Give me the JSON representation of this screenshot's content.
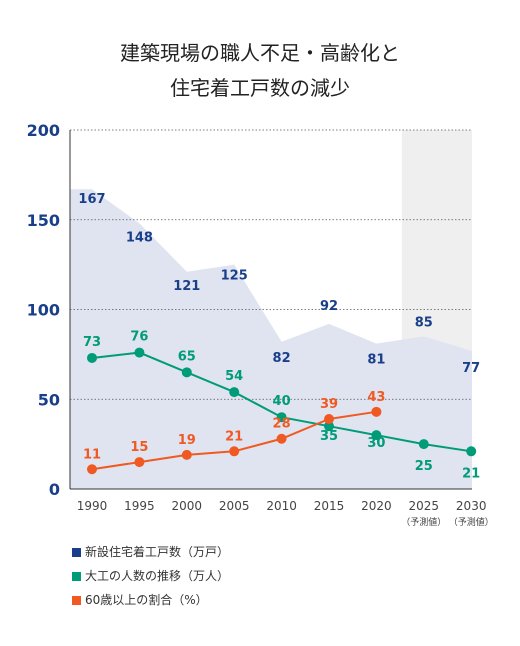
{
  "colors": {
    "housing": "#1a3f8a",
    "carpenters": "#009b77",
    "ratio": "#f05a22",
    "area": "#dfe4f0",
    "forecast": "#efefef",
    "axis": "#1a3f8a"
  },
  "chart_data": {
    "type": "line",
    "title": "建築現場の職人不足・高齢化と\n住宅着工戸数の減少",
    "categories": [
      "1990",
      "1995",
      "2000",
      "2005",
      "2010",
      "2015",
      "2020",
      "2025",
      "2030"
    ],
    "forecast_notes": [
      "（予測値）",
      "（予測値）"
    ],
    "forecast_categories": [
      "2025",
      "2030"
    ],
    "ylim": [
      0,
      200
    ],
    "yticks": [
      0,
      50,
      100,
      150,
      200
    ],
    "grid": "dotted-horizontal",
    "legend_placement": "bottom-left",
    "series": [
      {
        "name": "新設住宅着工戸数（万戸）",
        "style": "area",
        "color_key": "housing",
        "values": [
          167,
          148,
          121,
          125,
          82,
          92,
          81,
          85,
          77
        ]
      },
      {
        "name": "大工の人数の推移（万人）",
        "style": "line",
        "color_key": "carpenters",
        "values": [
          73,
          76,
          65,
          54,
          40,
          35,
          30,
          25,
          21
        ]
      },
      {
        "name": "60歳以上の割合（%）",
        "style": "line",
        "color_key": "ratio",
        "values": [
          11,
          15,
          19,
          21,
          28,
          39,
          43,
          null,
          null
        ]
      }
    ]
  }
}
